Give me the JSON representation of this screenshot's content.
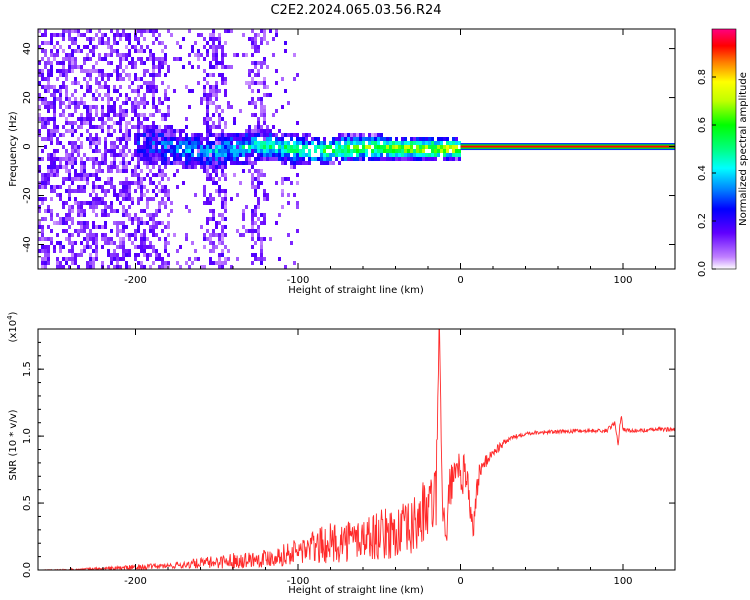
{
  "title": "C2E2.2024.065.03.56.R24",
  "colors": {
    "snr_line": "#ff2a2a",
    "background": "#ffffff"
  },
  "chart_data": [
    {
      "type": "heatmap",
      "title": "C2E2.2024.065.03.56.R24",
      "xlabel": "Height of straight line (km)",
      "ylabel": "Frequency (Hz)",
      "xlim": [
        -260,
        132
      ],
      "ylim": [
        -50,
        48
      ],
      "xticks": [
        "-200",
        "-100",
        "0",
        "100"
      ],
      "yticks": [
        "-40",
        "-20",
        "0",
        "20",
        "40"
      ],
      "colorbar": {
        "label": "Normalized spectral amplitude",
        "range": [
          0.0,
          1.0
        ],
        "ticks": [
          "0.0",
          "0.2",
          "0.4",
          "0.6",
          "0.8"
        ],
        "colormap": "rainbow"
      },
      "features": {
        "noise_region_x": [
          -260,
          -100
        ],
        "dense_noise_bands_x": [
          [
            -260,
            -180
          ],
          [
            -160,
            -145
          ],
          [
            -130,
            -120
          ]
        ],
        "signal_band_x": [
          -200,
          132
        ],
        "signal_center_freq": 0,
        "signal_halfwidth_at_-200": 5,
        "signal_halfwidth_at_0": 1.5,
        "steady_tone_from_x": 0
      }
    },
    {
      "type": "line",
      "xlabel": "Height of straight line (km)",
      "ylabel": "SNR (10 * v/v)",
      "scale_label": "(x10",
      "scale_exponent": "4",
      "scale_suffix": ")",
      "xlim": [
        -260,
        132
      ],
      "ylim": [
        0,
        1.8
      ],
      "xticks": [
        "-200",
        "-100",
        "0",
        "100"
      ],
      "yticks": [
        "0.0",
        "0.5",
        "1.0",
        "1.5"
      ],
      "series": [
        {
          "color": "#ff2a2a",
          "x": [
            -260,
            -240,
            -220,
            -200,
            -180,
            -160,
            -150,
            -140,
            -130,
            -120,
            -110,
            -100,
            -90,
            -80,
            -70,
            -60,
            -50,
            -40,
            -30,
            -25,
            -20,
            -17,
            -15,
            -13,
            -11,
            -9,
            -7,
            -5,
            -3,
            -1,
            0,
            2,
            4,
            6,
            8,
            10,
            12,
            15,
            20,
            25,
            30,
            40,
            50,
            60,
            70,
            80,
            90,
            95,
            97,
            99,
            100,
            105,
            110,
            120,
            132
          ],
          "y": [
            0.0,
            0.0,
            0.01,
            0.02,
            0.03,
            0.05,
            0.06,
            0.07,
            0.08,
            0.09,
            0.11,
            0.14,
            0.17,
            0.2,
            0.22,
            0.24,
            0.26,
            0.28,
            0.3,
            0.4,
            0.45,
            0.5,
            0.55,
            1.8,
            0.5,
            0.2,
            0.55,
            0.7,
            0.65,
            0.75,
            0.6,
            0.75,
            0.7,
            0.45,
            0.3,
            0.6,
            0.75,
            0.8,
            0.88,
            0.93,
            0.98,
            1.02,
            1.03,
            1.03,
            1.04,
            1.04,
            1.04,
            1.1,
            0.95,
            1.18,
            1.05,
            1.04,
            1.04,
            1.05,
            1.05
          ],
          "noise_amplitude": [
            0.0,
            0.01,
            0.01,
            0.02,
            0.02,
            0.04,
            0.05,
            0.06,
            0.06,
            0.07,
            0.08,
            0.1,
            0.13,
            0.15,
            0.16,
            0.17,
            0.19,
            0.2,
            0.22,
            0.25,
            0.25,
            0.25,
            0.25,
            0.0,
            0.2,
            0.1,
            0.2,
            0.15,
            0.15,
            0.15,
            0.15,
            0.15,
            0.15,
            0.1,
            0.08,
            0.1,
            0.08,
            0.05,
            0.04,
            0.03,
            0.02,
            0.015,
            0.015,
            0.015,
            0.015,
            0.015,
            0.015,
            0.02,
            0.02,
            0.02,
            0.015,
            0.015,
            0.015,
            0.015,
            0.015
          ]
        }
      ]
    }
  ]
}
